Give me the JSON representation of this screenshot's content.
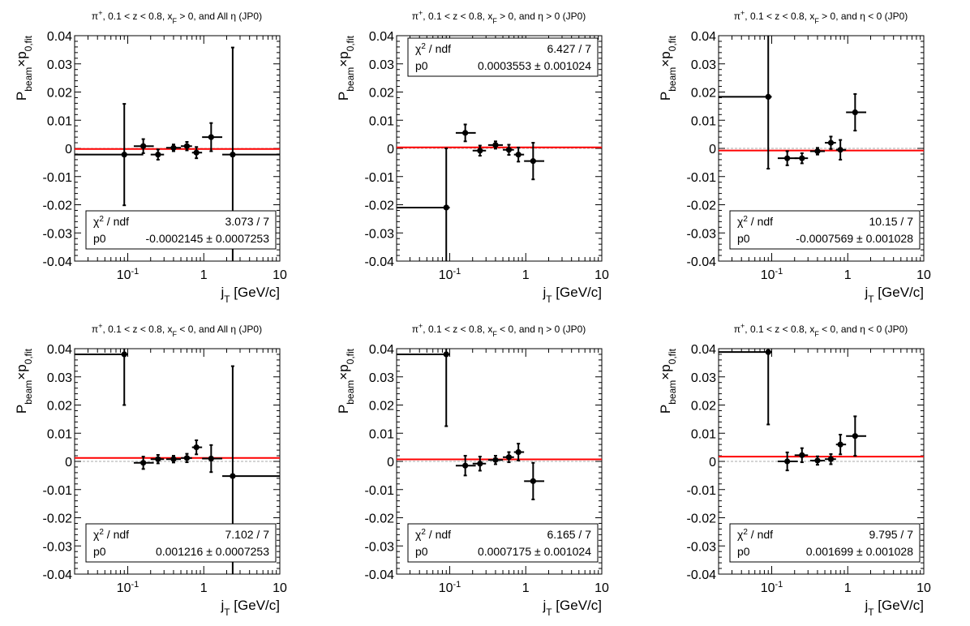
{
  "chart_data": [
    {
      "type": "scatter",
      "title_parts": [
        "π",
        "+",
        ", 0.1 < z < 0.8, x",
        "F",
        " > 0, and All η (JP0)"
      ],
      "xlabel_parts": [
        "j",
        "T",
        " [GeV/c]"
      ],
      "ylabel_parts": [
        "P",
        "beam",
        "×p",
        "0,fit"
      ],
      "xscale": "log",
      "xlim": [
        0.02,
        10
      ],
      "ylim": [
        -0.04,
        0.04
      ],
      "yticks": [
        "-0.04",
        "-0.03",
        "-0.02",
        "-0.01",
        "0",
        "0.01",
        "0.02",
        "0.03",
        "0.04"
      ],
      "xticks": [
        {
          "base": "10",
          "exp": "-1"
        },
        {
          "base": "1",
          "exp": ""
        },
        {
          "base": "10",
          "exp": ""
        }
      ],
      "points": [
        {
          "x": 0.09,
          "xlo": 0.02,
          "xhi": 0.16,
          "y": -0.0022,
          "ey": 0.018
        },
        {
          "x": 0.16,
          "xlo": 0.12,
          "xhi": 0.22,
          "y": 0.0008,
          "ey": 0.0025
        },
        {
          "x": 0.25,
          "xlo": 0.2,
          "xhi": 0.3,
          "y": -0.0022,
          "ey": 0.0018
        },
        {
          "x": 0.4,
          "xlo": 0.32,
          "xhi": 0.5,
          "y": 0.0002,
          "ey": 0.0012
        },
        {
          "x": 0.6,
          "xlo": 0.5,
          "xhi": 0.7,
          "y": 0.0008,
          "ey": 0.0015
        },
        {
          "x": 0.8,
          "xlo": 0.7,
          "xhi": 0.95,
          "y": -0.0015,
          "ey": 0.002
        },
        {
          "x": 1.25,
          "xlo": 0.95,
          "xhi": 1.75,
          "y": 0.004,
          "ey": 0.005
        },
        {
          "x": 2.4,
          "xlo": 1.75,
          "xhi": 10,
          "y": -0.0022,
          "ey": 0.038
        }
      ],
      "fit_p0": -0.0002145,
      "stats": {
        "chi2_label": "χ",
        "chi2_sup": "2",
        "chi2_rest": " / ndf",
        "chi2": "3.073 / 7",
        "p0_label": "p0",
        "p0": "-0.0002145 ± 0.0007253"
      },
      "stats_pos": "bottom"
    },
    {
      "type": "scatter",
      "title_parts": [
        "π",
        "+",
        ", 0.1 < z < 0.8, x",
        "F",
        " > 0, and η > 0 (JP0)"
      ],
      "xlabel_parts": [
        "j",
        "T",
        " [GeV/c]"
      ],
      "ylabel_parts": [
        "P",
        "beam",
        "×p",
        "0,fit"
      ],
      "xscale": "log",
      "xlim": [
        0.02,
        10
      ],
      "ylim": [
        -0.04,
        0.04
      ],
      "yticks": [
        "-0.04",
        "-0.03",
        "-0.02",
        "-0.01",
        "0",
        "0.01",
        "0.02",
        "0.03",
        "0.04"
      ],
      "xticks": [
        {
          "base": "10",
          "exp": "-1"
        },
        {
          "base": "1",
          "exp": ""
        },
        {
          "base": "10",
          "exp": ""
        }
      ],
      "points": [
        {
          "x": 0.09,
          "xlo": 0.02,
          "xhi": 0.1,
          "y": -0.021,
          "ey": 0.021
        },
        {
          "x": 0.16,
          "xlo": 0.12,
          "xhi": 0.22,
          "y": 0.0055,
          "ey": 0.003
        },
        {
          "x": 0.25,
          "xlo": 0.2,
          "xhi": 0.3,
          "y": -0.0008,
          "ey": 0.0018
        },
        {
          "x": 0.4,
          "xlo": 0.32,
          "xhi": 0.5,
          "y": 0.0012,
          "ey": 0.0013
        },
        {
          "x": 0.6,
          "xlo": 0.5,
          "xhi": 0.7,
          "y": -0.0005,
          "ey": 0.0018
        },
        {
          "x": 0.8,
          "xlo": 0.7,
          "xhi": 0.95,
          "y": -0.0022,
          "ey": 0.0025
        },
        {
          "x": 1.25,
          "xlo": 0.95,
          "xhi": 1.75,
          "y": -0.0045,
          "ey": 0.0065
        }
      ],
      "fit_p0": 0.0003553,
      "stats": {
        "chi2_label": "χ",
        "chi2_sup": "2",
        "chi2_rest": " / ndf",
        "chi2": "6.427 / 7",
        "p0_label": "p0",
        "p0": "0.0003553 ± 0.001024"
      },
      "stats_pos": "top"
    },
    {
      "type": "scatter",
      "title_parts": [
        "π",
        "+",
        ", 0.1 < z < 0.8, x",
        "F",
        " > 0, and η < 0 (JP0)"
      ],
      "xlabel_parts": [
        "j",
        "T",
        " [GeV/c]"
      ],
      "ylabel_parts": [
        "P",
        "beam",
        "×p",
        "0,fit"
      ],
      "xscale": "log",
      "xlim": [
        0.02,
        10
      ],
      "ylim": [
        -0.04,
        0.04
      ],
      "yticks": [
        "-0.04",
        "-0.03",
        "-0.02",
        "-0.01",
        "0",
        "0.01",
        "0.02",
        "0.03",
        "0.04"
      ],
      "xticks": [
        {
          "base": "10",
          "exp": "-1"
        },
        {
          "base": "1",
          "exp": ""
        },
        {
          "base": "10",
          "exp": ""
        }
      ],
      "points": [
        {
          "x": 0.09,
          "xlo": 0.02,
          "xhi": 0.1,
          "y": 0.0183,
          "ey": 0.0255
        },
        {
          "x": 0.16,
          "xlo": 0.12,
          "xhi": 0.22,
          "y": -0.0035,
          "ey": 0.0025
        },
        {
          "x": 0.25,
          "xlo": 0.2,
          "xhi": 0.3,
          "y": -0.0035,
          "ey": 0.0018
        },
        {
          "x": 0.4,
          "xlo": 0.32,
          "xhi": 0.5,
          "y": -0.001,
          "ey": 0.0012
        },
        {
          "x": 0.6,
          "xlo": 0.5,
          "xhi": 0.7,
          "y": 0.002,
          "ey": 0.0022
        },
        {
          "x": 0.8,
          "xlo": 0.7,
          "xhi": 0.95,
          "y": -0.0005,
          "ey": 0.0035
        },
        {
          "x": 1.25,
          "xlo": 0.95,
          "xhi": 1.75,
          "y": 0.0128,
          "ey": 0.0065
        }
      ],
      "fit_p0": -0.0007569,
      "stats": {
        "chi2_label": "χ",
        "chi2_sup": "2",
        "chi2_rest": " / ndf",
        "chi2": "10.15 / 7",
        "p0_label": "p0",
        "p0": "-0.0007569 ± 0.001028"
      },
      "stats_pos": "bottom"
    },
    {
      "type": "scatter",
      "title_parts": [
        "π",
        "+",
        ", 0.1 < z < 0.8, x",
        "F",
        " < 0, and All η (JP0)"
      ],
      "xlabel_parts": [
        "j",
        "T",
        " [GeV/c]"
      ],
      "ylabel_parts": [
        "P",
        "beam",
        "×p",
        "0,fit"
      ],
      "xscale": "log",
      "xlim": [
        0.02,
        10
      ],
      "ylim": [
        -0.04,
        0.04
      ],
      "yticks": [
        "-0.04",
        "-0.03",
        "-0.02",
        "-0.01",
        "0",
        "0.01",
        "0.02",
        "0.03",
        "0.04"
      ],
      "xticks": [
        {
          "base": "10",
          "exp": "-1"
        },
        {
          "base": "1",
          "exp": ""
        },
        {
          "base": "10",
          "exp": ""
        }
      ],
      "points": [
        {
          "x": 0.09,
          "xlo": 0.02,
          "xhi": 0.1,
          "y": 0.038,
          "ey": 0.018
        },
        {
          "x": 0.16,
          "xlo": 0.12,
          "xhi": 0.22,
          "y": -0.0005,
          "ey": 0.0022
        },
        {
          "x": 0.25,
          "xlo": 0.2,
          "xhi": 0.3,
          "y": 0.0008,
          "ey": 0.0015
        },
        {
          "x": 0.4,
          "xlo": 0.32,
          "xhi": 0.5,
          "y": 0.0008,
          "ey": 0.0012
        },
        {
          "x": 0.6,
          "xlo": 0.5,
          "xhi": 0.7,
          "y": 0.0012,
          "ey": 0.0015
        },
        {
          "x": 0.8,
          "xlo": 0.7,
          "xhi": 0.95,
          "y": 0.005,
          "ey": 0.0025
        },
        {
          "x": 1.25,
          "xlo": 0.95,
          "xhi": 1.75,
          "y": 0.001,
          "ey": 0.0048
        },
        {
          "x": 2.4,
          "xlo": 1.75,
          "xhi": 10,
          "y": -0.0052,
          "ey": 0.039
        }
      ],
      "fit_p0": 0.001216,
      "stats": {
        "chi2_label": "χ",
        "chi2_sup": "2",
        "chi2_rest": " / ndf",
        "chi2": "7.102 / 7",
        "p0_label": "p0",
        "p0": "0.001216 ± 0.0007253"
      },
      "stats_pos": "bottom"
    },
    {
      "type": "scatter",
      "title_parts": [
        "π",
        "+",
        ", 0.1 < z < 0.8, x",
        "F",
        " < 0, and η > 0 (JP0)"
      ],
      "xlabel_parts": [
        "j",
        "T",
        " [GeV/c]"
      ],
      "ylabel_parts": [
        "P",
        "beam",
        "×p",
        "0,fit"
      ],
      "xscale": "log",
      "xlim": [
        0.02,
        10
      ],
      "ylim": [
        -0.04,
        0.04
      ],
      "yticks": [
        "-0.04",
        "-0.03",
        "-0.02",
        "-0.01",
        "0",
        "0.01",
        "0.02",
        "0.03",
        "0.04"
      ],
      "xticks": [
        {
          "base": "10",
          "exp": "-1"
        },
        {
          "base": "1",
          "exp": ""
        },
        {
          "base": "10",
          "exp": ""
        }
      ],
      "points": [
        {
          "x": 0.09,
          "xlo": 0.02,
          "xhi": 0.1,
          "y": 0.038,
          "ey": 0.0255
        },
        {
          "x": 0.16,
          "xlo": 0.12,
          "xhi": 0.22,
          "y": -0.0015,
          "ey": 0.0035
        },
        {
          "x": 0.25,
          "xlo": 0.2,
          "xhi": 0.3,
          "y": -0.0008,
          "ey": 0.0025
        },
        {
          "x": 0.4,
          "xlo": 0.32,
          "xhi": 0.5,
          "y": 0.0005,
          "ey": 0.0015
        },
        {
          "x": 0.6,
          "xlo": 0.5,
          "xhi": 0.7,
          "y": 0.0015,
          "ey": 0.0018
        },
        {
          "x": 0.8,
          "xlo": 0.7,
          "xhi": 0.95,
          "y": 0.0033,
          "ey": 0.003
        },
        {
          "x": 1.25,
          "xlo": 0.95,
          "xhi": 1.75,
          "y": -0.007,
          "ey": 0.0065
        }
      ],
      "fit_p0": 0.0007175,
      "stats": {
        "chi2_label": "χ",
        "chi2_sup": "2",
        "chi2_rest": " / ndf",
        "chi2": "6.165 / 7",
        "p0_label": "p0",
        "p0": "0.0007175 ± 0.001024"
      },
      "stats_pos": "bottom"
    },
    {
      "type": "scatter",
      "title_parts": [
        "π",
        "+",
        ", 0.1 < z < 0.8, x",
        "F",
        " < 0, and η < 0 (JP0)"
      ],
      "xlabel_parts": [
        "j",
        "T",
        " [GeV/c]"
      ],
      "ylabel_parts": [
        "P",
        "beam",
        "×p",
        "0,fit"
      ],
      "xscale": "log",
      "xlim": [
        0.02,
        10
      ],
      "ylim": [
        -0.04,
        0.04
      ],
      "yticks": [
        "-0.04",
        "-0.03",
        "-0.02",
        "-0.01",
        "0",
        "0.01",
        "0.02",
        "0.03",
        "0.04"
      ],
      "xticks": [
        {
          "base": "10",
          "exp": "-1"
        },
        {
          "base": "1",
          "exp": ""
        },
        {
          "base": "10",
          "exp": ""
        }
      ],
      "points": [
        {
          "x": 0.09,
          "xlo": 0.02,
          "xhi": 0.1,
          "y": 0.0388,
          "ey": 0.0257
        },
        {
          "x": 0.16,
          "xlo": 0.12,
          "xhi": 0.22,
          "y": 0.0,
          "ey": 0.0032
        },
        {
          "x": 0.25,
          "xlo": 0.2,
          "xhi": 0.3,
          "y": 0.0022,
          "ey": 0.0025
        },
        {
          "x": 0.4,
          "xlo": 0.32,
          "xhi": 0.5,
          "y": 0.0003,
          "ey": 0.0015
        },
        {
          "x": 0.6,
          "xlo": 0.5,
          "xhi": 0.7,
          "y": 0.0008,
          "ey": 0.0018
        },
        {
          "x": 0.8,
          "xlo": 0.7,
          "xhi": 0.95,
          "y": 0.006,
          "ey": 0.0035
        },
        {
          "x": 1.25,
          "xlo": 0.95,
          "xhi": 1.75,
          "y": 0.009,
          "ey": 0.007
        }
      ],
      "fit_p0": 0.001699,
      "stats": {
        "chi2_label": "χ",
        "chi2_sup": "2",
        "chi2_rest": " / ndf",
        "chi2": "9.795 / 7",
        "p0_label": "p0",
        "p0": "0.001699 ± 0.001028"
      },
      "stats_pos": "bottom"
    }
  ],
  "colors": {
    "fit_line": "#ff0000",
    "zero_line": "#aaaaaa",
    "markers": "#000000",
    "frame": "#000000"
  }
}
